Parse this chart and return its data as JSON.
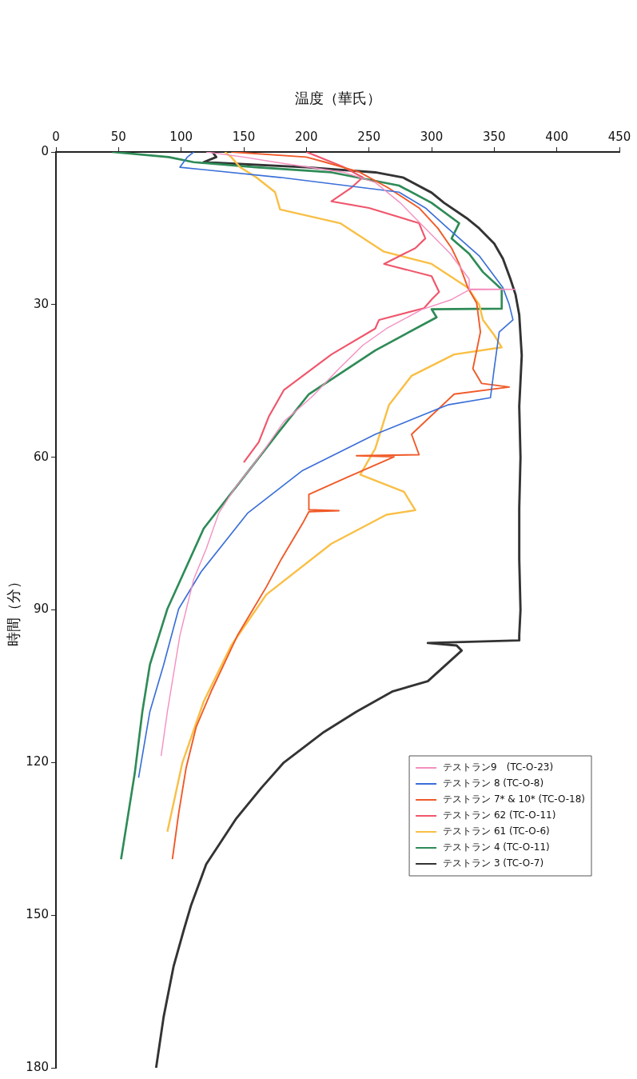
{
  "chart_data": {
    "type": "line",
    "xlabel": "温度（華氏）",
    "ylabel": "時間（分）",
    "xlim": [
      0,
      450
    ],
    "xticks": [
      0,
      50,
      100,
      150,
      200,
      250,
      300,
      350,
      400,
      450
    ],
    "ylim": [
      180,
      0
    ],
    "yticks": [
      0,
      30,
      60,
      90,
      120,
      150,
      180
    ],
    "grid": false,
    "legend": "bottom right",
    "marker": "none",
    "line_style": "solid",
    "series": [
      {
        "name": "テストラン9　(TC-O-23)",
        "color": "#f48fc0",
        "values": [
          0,
          1,
          2,
          4,
          6,
          10,
          15,
          20,
          25,
          26.9,
          27,
          27.1,
          29,
          31,
          34.7,
          38,
          42.6,
          48,
          53,
          58,
          62,
          66,
          71,
          78,
          84,
          90,
          95,
          101,
          110,
          118.7
        ],
        "x": [
          120,
          150,
          175,
          230,
          255,
          275,
          295,
          315,
          330,
          330,
          367,
          330,
          316,
          292,
          264,
          245,
          226,
          205,
          182,
          168,
          156,
          143,
          130,
          120,
          110,
          104,
          99,
          95,
          89,
          84
        ]
      },
      {
        "name": "テストラン 8 (TC-O-8)",
        "color": "#3a6fd8",
        "values": [
          0,
          1,
          3,
          5,
          7.9,
          11,
          15,
          20.4,
          26.7,
          30,
          33,
          35.4,
          42.6,
          48.3,
          49.7,
          55.5,
          62.6,
          71,
          82.5,
          89.8,
          100.8,
          110,
          123
        ],
        "x": [
          110,
          105,
          99,
          179,
          274,
          295,
          313,
          338,
          357,
          362,
          365,
          354,
          350,
          347,
          313,
          255,
          197,
          153,
          116,
          98,
          86,
          75,
          66
        ]
      },
      {
        "name": "テストラン 7* & 10* (TC-O-18)",
        "color": "#f05a28",
        "values": [
          0,
          1,
          2,
          3.9,
          7,
          11,
          15,
          18.9,
          22,
          26.7,
          29.7,
          35.4,
          42.6,
          45.5,
          46.2,
          47.6,
          55.5,
          59.5,
          59.7,
          59.9,
          64,
          67.3,
          70.3,
          70.5,
          70.7,
          73,
          80,
          85.5,
          95,
          106,
          113,
          121,
          130,
          139
        ],
        "x": [
          140,
          200,
          215,
          242,
          265,
          290,
          305,
          316,
          322,
          329,
          336,
          339,
          333,
          340,
          362,
          318,
          284,
          290,
          240,
          270,
          232,
          202,
          202,
          226,
          202,
          197,
          180,
          168,
          145,
          124,
          112,
          104,
          98,
          93
        ]
      },
      {
        "name": "テストラン 62 (TC-O-11)",
        "color": "#f0566c",
        "values": [
          0,
          1,
          3,
          5,
          7,
          9.7,
          11,
          14,
          17,
          18.9,
          22,
          24.4,
          27.5,
          29,
          30.7,
          33,
          34.7,
          39.8,
          46.8,
          52,
          57,
          61
        ],
        "x": [
          200,
          210,
          230,
          245,
          236,
          220,
          250,
          290,
          295,
          287,
          262,
          300,
          306,
          300,
          294,
          258,
          255,
          220,
          182,
          170,
          162,
          150
        ]
      },
      {
        "name": "テストラン 61 (TC-O-6)",
        "color": "#f9bf45",
        "values": [
          0,
          1,
          3,
          5,
          7.9,
          11.3,
          14,
          19.6,
          22,
          26.7,
          30,
          33,
          36,
          38.4,
          39.8,
          44,
          49.7,
          58.3,
          63.4,
          66.8,
          70.4,
          71.3,
          77,
          87,
          97,
          108,
          120,
          133.6
        ],
        "x": [
          135,
          140,
          147,
          160,
          175,
          179,
          227,
          262,
          300,
          329,
          338,
          341,
          350,
          356,
          318,
          284,
          266,
          255,
          243,
          278,
          287,
          264,
          220,
          168,
          140,
          118,
          101,
          89
        ]
      },
      {
        "name": "テストラン 4 (TC-O-11)",
        "color": "#2e8b57",
        "values": [
          0,
          1,
          2,
          3,
          4,
          6.6,
          10,
          14,
          17,
          20,
          23.6,
          27,
          30.8,
          30.9,
          32.5,
          39,
          47.6,
          55,
          62,
          74,
          89.8,
          100.8,
          110,
          122,
          139
        ],
        "x": [
          45,
          90,
          110,
          160,
          220,
          274,
          300,
          322,
          316,
          330,
          341,
          356,
          356,
          300,
          304,
          255,
          202,
          178,
          156,
          118,
          89,
          75,
          69,
          63,
          52
        ]
      },
      {
        "name": "テストラン 3 (TC-O-7)",
        "color": "#333333",
        "values": [
          0,
          1,
          2,
          3,
          4,
          5,
          8,
          10,
          13,
          15,
          18,
          21,
          25,
          28,
          32,
          40,
          50,
          60,
          70,
          80,
          90,
          95,
          96,
          96.5,
          97,
          98,
          100,
          104,
          106,
          110,
          114,
          120,
          125,
          131,
          140,
          148,
          153,
          160,
          170,
          180
        ],
        "x": [
          125,
          128,
          118,
          200,
          255,
          277,
          300,
          310,
          328,
          338,
          350,
          357,
          363,
          367,
          370,
          372,
          370,
          371,
          370,
          370,
          371,
          370,
          370,
          297,
          320,
          324,
          315,
          297,
          269,
          240,
          214,
          182,
          164,
          144,
          120,
          108,
          102,
          94,
          86,
          80
        ]
      }
    ]
  }
}
